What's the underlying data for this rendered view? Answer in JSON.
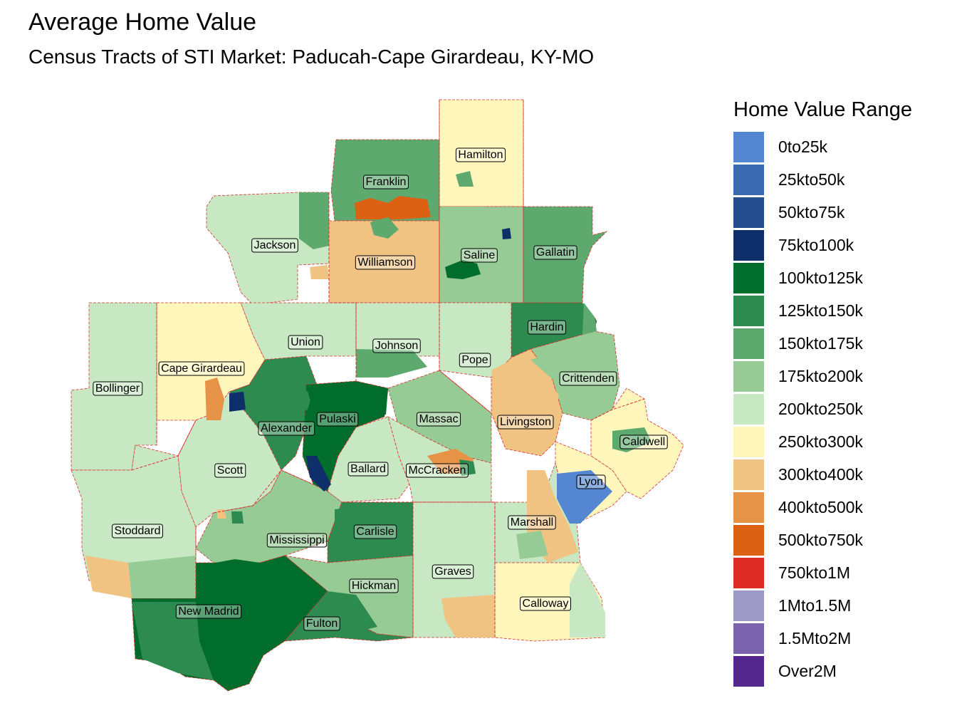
{
  "title": "Average Home Value",
  "subtitle": "Census Tracts of STI Market: Paducah-Cape Girardeau, KY-MO",
  "legend": {
    "title": "Home Value Range",
    "items": [
      {
        "label": "0to25k",
        "color": "#5486D1"
      },
      {
        "label": "25kto50k",
        "color": "#3A69AF"
      },
      {
        "label": "50kto75k",
        "color": "#234C8C"
      },
      {
        "label": "75kto100k",
        "color": "#0E2F6A"
      },
      {
        "label": "100kto125k",
        "color": "#006D2C"
      },
      {
        "label": "125kto150k",
        "color": "#2E8B50"
      },
      {
        "label": "150kto175k",
        "color": "#5DA96E"
      },
      {
        "label": "175kto200k",
        "color": "#97CB95"
      },
      {
        "label": "200kto250k",
        "color": "#C7E8C2"
      },
      {
        "label": "250kto300k",
        "color": "#FFF6BC"
      },
      {
        "label": "300kto400k",
        "color": "#F0C382"
      },
      {
        "label": "400kto500k",
        "color": "#E69247"
      },
      {
        "label": "500kto750k",
        "color": "#DC6113"
      },
      {
        "label": "750kto1M",
        "color": "#DE2D26"
      },
      {
        "label": "1Mto1.5M",
        "color": "#9E9AC8"
      },
      {
        "label": "1.5Mto2M",
        "color": "#7A62AC"
      },
      {
        "label": "Over2M",
        "color": "#54278F"
      }
    ]
  },
  "counties": [
    {
      "name": "Hamilton",
      "bin": "250kto300k"
    },
    {
      "name": "Franklin",
      "bin": "150kto175k"
    },
    {
      "name": "Jackson",
      "bin": "200kto250k"
    },
    {
      "name": "Williamson",
      "bin": "300kto400k"
    },
    {
      "name": "Saline",
      "bin": "175kto200k"
    },
    {
      "name": "Gallatin",
      "bin": "150kto175k"
    },
    {
      "name": "Union",
      "bin": "200kto250k"
    },
    {
      "name": "Johnson",
      "bin": "200kto250k"
    },
    {
      "name": "Hardin",
      "bin": "125kto150k"
    },
    {
      "name": "Pope",
      "bin": "200kto250k"
    },
    {
      "name": "Cape Girardeau",
      "bin": "250kto300k"
    },
    {
      "name": "Bollinger",
      "bin": "200kto250k"
    },
    {
      "name": "Crittenden",
      "bin": "175kto200k"
    },
    {
      "name": "Alexander",
      "bin": "125kto150k"
    },
    {
      "name": "Pulaski",
      "bin": "100kto125k"
    },
    {
      "name": "Massac",
      "bin": "175kto200k"
    },
    {
      "name": "Livingston",
      "bin": "300kto400k"
    },
    {
      "name": "Caldwell",
      "bin": "250kto300k"
    },
    {
      "name": "Scott",
      "bin": "200kto250k"
    },
    {
      "name": "Ballard",
      "bin": "200kto250k"
    },
    {
      "name": "McCracken",
      "bin": "200kto250k"
    },
    {
      "name": "Lyon",
      "bin": "250kto300k"
    },
    {
      "name": "Stoddard",
      "bin": "200kto250k"
    },
    {
      "name": "Mississippi",
      "bin": "175kto200k"
    },
    {
      "name": "Carlisle",
      "bin": "125kto150k"
    },
    {
      "name": "Marshall",
      "bin": "200kto250k"
    },
    {
      "name": "Graves",
      "bin": "200kto250k"
    },
    {
      "name": "Hickman",
      "bin": "175kto200k"
    },
    {
      "name": "New Madrid",
      "bin": "100kto125k"
    },
    {
      "name": "Fulton",
      "bin": "125kto150k"
    },
    {
      "name": "Calloway",
      "bin": "250kto300k"
    }
  ]
}
